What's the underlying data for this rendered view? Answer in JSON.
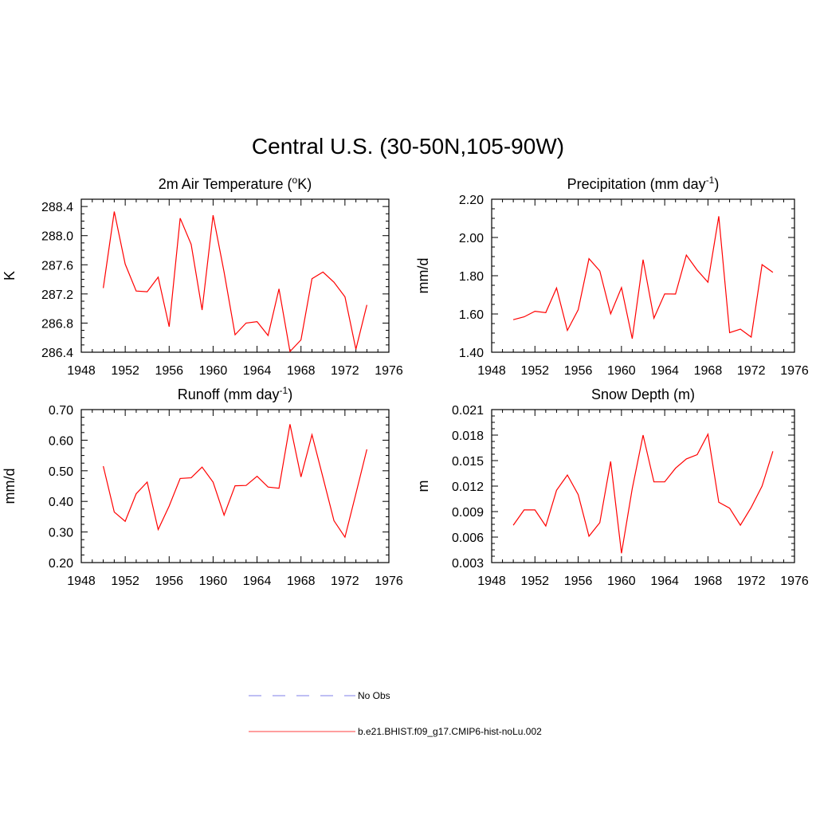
{
  "title": "Central U.S. (30-50N,105-90W)",
  "chart_data": [
    {
      "type": "line",
      "title": "2m Air Temperature",
      "title_unit_html": "(oK)",
      "title_base": "2m Air Temperature (",
      "title_sup": "o",
      "title_end": "K)",
      "ylabel": "K",
      "xlim": [
        1948,
        1976
      ],
      "ylim": [
        286.4,
        288.5
      ],
      "xticks": [
        "1948",
        "1952",
        "1956",
        "1960",
        "1964",
        "1968",
        "1972",
        "1976"
      ],
      "yticks": [
        "286.4",
        "286.8",
        "287.2",
        "287.6",
        "288.0",
        "288.4"
      ],
      "ytick_values": [
        286.4,
        286.8,
        287.2,
        287.6,
        288.0,
        288.4
      ],
      "x": [
        1950,
        1951,
        1952,
        1953,
        1954,
        1955,
        1956,
        1957,
        1958,
        1959,
        1960,
        1961,
        1962,
        1963,
        1964,
        1965,
        1966,
        1967,
        1968,
        1969,
        1970,
        1971,
        1972,
        1973,
        1974
      ],
      "series": [
        {
          "values": [
            287.28,
            288.33,
            287.61,
            287.24,
            287.23,
            287.43,
            286.75,
            288.24,
            287.88,
            286.98,
            288.28,
            287.5,
            286.64,
            286.8,
            286.82,
            286.63,
            287.27,
            286.41,
            286.57,
            287.41,
            287.5,
            287.36,
            287.16,
            286.44,
            287.05
          ],
          "color": "#ff0000"
        }
      ]
    },
    {
      "type": "line",
      "title": "Precipitation",
      "title_base": "Precipitation (mm day",
      "title_sup": "-1",
      "title_end": ")",
      "ylabel": "mm/d",
      "xlim": [
        1948,
        1976
      ],
      "ylim": [
        1.4,
        2.2
      ],
      "xticks": [
        "1948",
        "1952",
        "1956",
        "1960",
        "1964",
        "1968",
        "1972",
        "1976"
      ],
      "yticks": [
        "1.40",
        "1.60",
        "1.80",
        "2.00",
        "2.20"
      ],
      "ytick_values": [
        1.4,
        1.6,
        1.8,
        2.0,
        2.2
      ],
      "x": [
        1950,
        1951,
        1952,
        1953,
        1954,
        1955,
        1956,
        1957,
        1958,
        1959,
        1960,
        1961,
        1962,
        1963,
        1964,
        1965,
        1966,
        1967,
        1968,
        1969,
        1970,
        1971,
        1972,
        1973,
        1974
      ],
      "series": [
        {
          "values": [
            1.57,
            1.585,
            1.614,
            1.607,
            1.736,
            1.514,
            1.622,
            1.889,
            1.825,
            1.601,
            1.738,
            1.471,
            1.884,
            1.578,
            1.705,
            1.704,
            1.908,
            1.829,
            1.766,
            2.111,
            1.502,
            1.521,
            1.479,
            1.858,
            1.818
          ],
          "color": "#ff0000"
        }
      ]
    },
    {
      "type": "line",
      "title": "Runoff",
      "title_base": "Runoff (mm day",
      "title_sup": "-1",
      "title_end": ")",
      "ylabel": "mm/d",
      "xlim": [
        1948,
        1976
      ],
      "ylim": [
        0.2,
        0.7
      ],
      "xticks": [
        "1948",
        "1952",
        "1956",
        "1960",
        "1964",
        "1968",
        "1972",
        "1976"
      ],
      "yticks": [
        "0.20",
        "0.30",
        "0.40",
        "0.50",
        "0.60",
        "0.70"
      ],
      "ytick_values": [
        0.2,
        0.3,
        0.4,
        0.5,
        0.6,
        0.7
      ],
      "x": [
        1950,
        1951,
        1952,
        1953,
        1954,
        1955,
        1956,
        1957,
        1958,
        1959,
        1960,
        1961,
        1962,
        1963,
        1964,
        1965,
        1966,
        1967,
        1968,
        1969,
        1970,
        1971,
        1972,
        1973,
        1974
      ],
      "series": [
        {
          "values": [
            0.515,
            0.365,
            0.335,
            0.425,
            0.463,
            0.308,
            0.385,
            0.475,
            0.477,
            0.512,
            0.463,
            0.355,
            0.451,
            0.452,
            0.482,
            0.447,
            0.443,
            0.652,
            0.48,
            0.618,
            0.478,
            0.337,
            0.283,
            0.425,
            0.57
          ],
          "color": "#ff0000"
        }
      ]
    },
    {
      "type": "line",
      "title": "Snow Depth (m)",
      "title_base": "Snow Depth (m)",
      "title_sup": "",
      "title_end": "",
      "ylabel": "m",
      "xlim": [
        1948,
        1976
      ],
      "ylim": [
        0.003,
        0.021
      ],
      "xticks": [
        "1948",
        "1952",
        "1956",
        "1960",
        "1964",
        "1968",
        "1972",
        "1976"
      ],
      "yticks": [
        "0.003",
        "0.006",
        "0.009",
        "0.012",
        "0.015",
        "0.018",
        "0.021"
      ],
      "ytick_values": [
        0.003,
        0.006,
        0.009,
        0.012,
        0.015,
        0.018,
        0.021
      ],
      "x": [
        1950,
        1951,
        1952,
        1953,
        1954,
        1955,
        1956,
        1957,
        1958,
        1959,
        1960,
        1961,
        1962,
        1963,
        1964,
        1965,
        1966,
        1967,
        1968,
        1969,
        1970,
        1971,
        1972,
        1973,
        1974
      ],
      "series": [
        {
          "values": [
            0.0074,
            0.0092,
            0.0092,
            0.0073,
            0.0115,
            0.0133,
            0.011,
            0.0061,
            0.0077,
            0.0149,
            0.0041,
            0.0117,
            0.018,
            0.0125,
            0.0125,
            0.0141,
            0.0152,
            0.0157,
            0.0181,
            0.0101,
            0.0094,
            0.0074,
            0.0095,
            0.012,
            0.0161
          ],
          "color": "#ff0000"
        }
      ]
    }
  ],
  "legend": [
    {
      "label": "No Obs",
      "color": "#9999ee",
      "dash": "dashed"
    },
    {
      "label": "b.e21.BHIST.f09_g17.CMIP6-hist-noLu.002",
      "color": "#ff6666",
      "dash": "solid"
    }
  ]
}
